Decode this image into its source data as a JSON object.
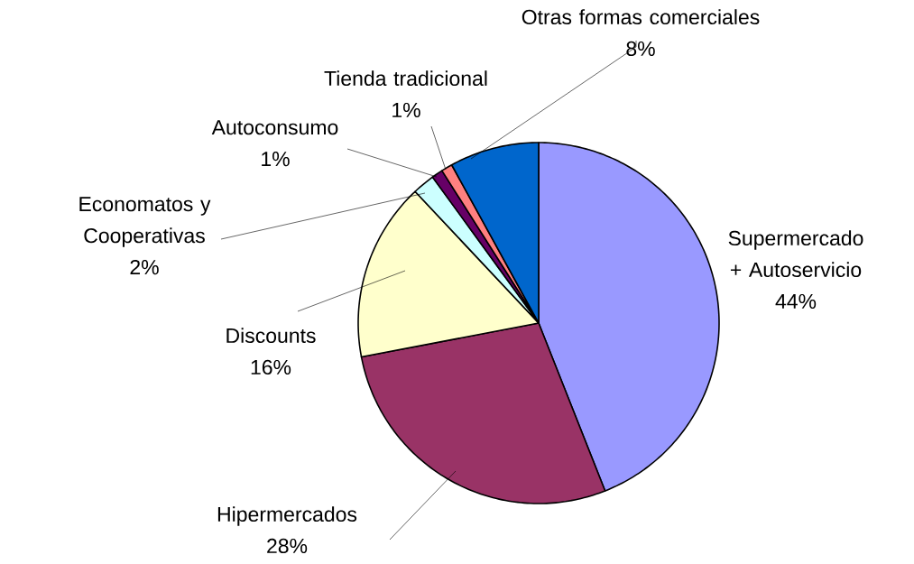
{
  "chart_data": {
    "type": "pie",
    "categories": [
      "Supermercado + Autoservicio",
      "Hipermercados",
      "Discounts",
      "Economatos y Cooperativas",
      "Autoconsumo",
      "Tienda tradicional",
      "Otras formas comerciales"
    ],
    "values": [
      44,
      28,
      16,
      2,
      1,
      1,
      8
    ],
    "value_labels": [
      "44%",
      "28%",
      "16%",
      "2%",
      "1%",
      "1%",
      "8%"
    ],
    "colors": [
      "#9999ff",
      "#993366",
      "#ffffcc",
      "#ccffff",
      "#660066",
      "#ff8080",
      "#0066cc"
    ]
  }
}
